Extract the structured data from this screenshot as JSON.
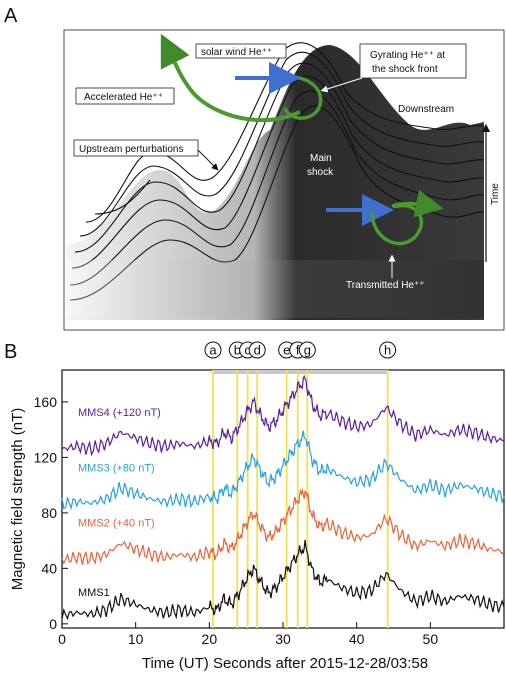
{
  "panel_a": {
    "letter": "A",
    "labels": {
      "solar_wind": "solar wind He⁺⁺",
      "gyrating_line1": "Gyrating He⁺⁺ at",
      "gyrating_line2": "the shock front",
      "accelerated": "Accelerated He⁺⁺",
      "upstream": "Upstream perturbations",
      "downstream": "Downstream",
      "main_shock_line1": "Main",
      "main_shock_line2": "shock",
      "time_axis": "Time",
      "transmitted": "Transmitted He⁺⁺"
    }
  },
  "panel_b": {
    "letter": "B",
    "chart_data": {
      "type": "line",
      "xlabel": "Time (UT)  Seconds after 2015-12-28/03:58",
      "ylabel": "Magnetic field strength (nT)",
      "xlim": [
        0,
        60
      ],
      "ylim": [
        -3,
        183
      ],
      "xticks": [
        0,
        10,
        20,
        30,
        40,
        50
      ],
      "yticks": [
        0,
        40,
        80,
        120,
        160
      ],
      "event_lines": [
        {
          "label": "a",
          "x": 20.5
        },
        {
          "label": "b",
          "x": 23.8
        },
        {
          "label": "c",
          "x": 25.2
        },
        {
          "label": "d",
          "x": 26.5
        },
        {
          "label": "e",
          "x": 30.5
        },
        {
          "label": "f",
          "x": 32.0
        },
        {
          "label": "g",
          "x": 33.3
        },
        {
          "label": "h",
          "x": 44.2
        }
      ],
      "series": [
        {
          "name": "MMS4 (+120 nT)",
          "color": "#5b1f9c",
          "x": [
            0,
            2,
            4,
            6,
            8,
            10,
            12,
            14,
            16,
            18,
            20,
            21,
            22,
            23,
            24,
            25,
            26,
            27,
            28,
            29,
            30,
            31,
            32,
            33,
            34,
            35,
            36,
            38,
            40,
            42,
            44,
            46,
            48,
            50,
            52,
            54,
            56,
            58,
            60
          ],
          "y": [
            126,
            128,
            126,
            130,
            138,
            134,
            130,
            128,
            130,
            128,
            132,
            130,
            138,
            134,
            142,
            152,
            160,
            150,
            142,
            146,
            154,
            162,
            170,
            176,
            158,
            150,
            152,
            146,
            142,
            144,
            156,
            144,
            136,
            140,
            136,
            140,
            138,
            134,
            132
          ]
        },
        {
          "name": "MMS3 (+80 nT)",
          "color": "#29a0df",
          "x": [
            0,
            2,
            4,
            6,
            8,
            10,
            12,
            14,
            16,
            18,
            20,
            21,
            22,
            23,
            24,
            25,
            26,
            27,
            28,
            29,
            30,
            31,
            32,
            33,
            34,
            35,
            36,
            38,
            40,
            42,
            44,
            46,
            48,
            50,
            52,
            54,
            56,
            58,
            60
          ],
          "y": [
            86,
            88,
            87,
            90,
            98,
            94,
            90,
            88,
            90,
            88,
            92,
            90,
            98,
            94,
            102,
            112,
            120,
            110,
            102,
            106,
            114,
            122,
            130,
            136,
            118,
            110,
            112,
            106,
            102,
            104,
            116,
            104,
            96,
            100,
            96,
            100,
            98,
            94,
            92
          ]
        },
        {
          "name": "MMS2 (+40 nT)",
          "color": "#e8643a",
          "x": [
            0,
            2,
            4,
            6,
            8,
            10,
            12,
            14,
            16,
            18,
            20,
            21,
            22,
            23,
            24,
            25,
            26,
            27,
            28,
            29,
            30,
            31,
            32,
            33,
            34,
            35,
            36,
            38,
            40,
            42,
            44,
            46,
            48,
            50,
            52,
            54,
            56,
            58,
            60
          ],
          "y": [
            46,
            48,
            47,
            50,
            58,
            54,
            50,
            48,
            50,
            48,
            52,
            50,
            58,
            54,
            62,
            72,
            80,
            70,
            62,
            66,
            74,
            82,
            90,
            96,
            78,
            70,
            72,
            66,
            62,
            64,
            76,
            64,
            56,
            60,
            56,
            60,
            58,
            54,
            52
          ]
        },
        {
          "name": "MMS1",
          "color": "#111111",
          "x": [
            0,
            2,
            4,
            6,
            8,
            10,
            12,
            14,
            16,
            18,
            20,
            21,
            22,
            23,
            24,
            25,
            26,
            27,
            28,
            29,
            30,
            31,
            32,
            33,
            34,
            35,
            36,
            38,
            40,
            42,
            44,
            46,
            48,
            50,
            52,
            54,
            56,
            58,
            60
          ],
          "y": [
            6,
            8,
            7,
            10,
            18,
            14,
            10,
            8,
            10,
            8,
            12,
            10,
            18,
            14,
            22,
            32,
            40,
            30,
            22,
            26,
            34,
            42,
            50,
            56,
            38,
            30,
            32,
            26,
            22,
            24,
            36,
            24,
            16,
            20,
            16,
            20,
            18,
            14,
            12
          ]
        }
      ]
    }
  }
}
